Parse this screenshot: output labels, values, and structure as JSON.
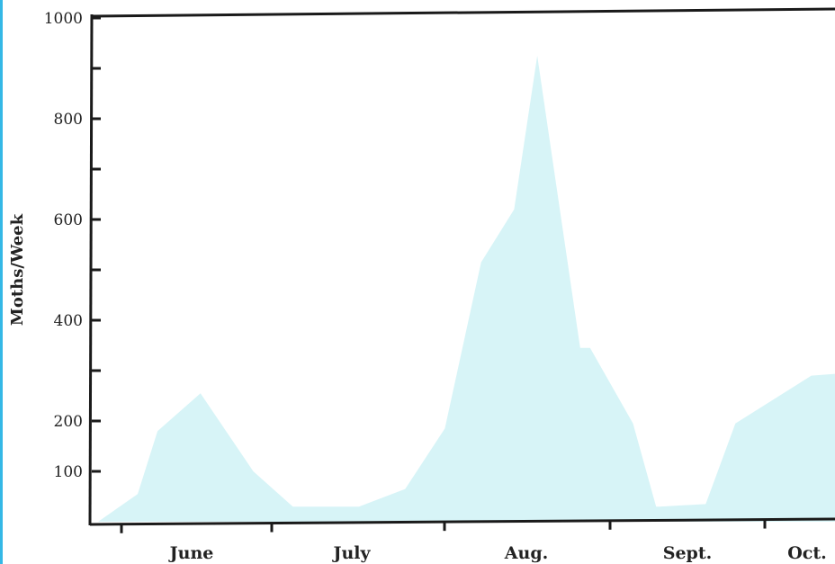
{
  "chart_data": {
    "type": "area",
    "ylabel": "Moths/Week",
    "yticks": [
      100,
      200,
      400,
      600,
      800,
      1000
    ],
    "ylim": [
      0,
      1000
    ],
    "months": [
      "June",
      "July",
      "Aug.",
      "Sept.",
      "Oct."
    ],
    "series": [
      {
        "week": [
          0,
          1.2,
          1.8,
          3.1,
          4.7,
          5.9,
          7.9,
          9.3,
          10.5,
          11.6,
          12.6,
          13.3,
          14.6,
          14.9,
          16.2,
          16.9,
          17.0,
          18.4,
          19.3,
          21.6,
          22.6
        ],
        "values": [
          0,
          55,
          180,
          255,
          100,
          30,
          30,
          65,
          185,
          515,
          620,
          925,
          345,
          345,
          195,
          30,
          30,
          35,
          195,
          290,
          295
        ]
      }
    ],
    "grid": false,
    "fill_color": "#d7f4f7",
    "axis_color": "#1a1a1a",
    "edge_color": "#34b8e6"
  }
}
